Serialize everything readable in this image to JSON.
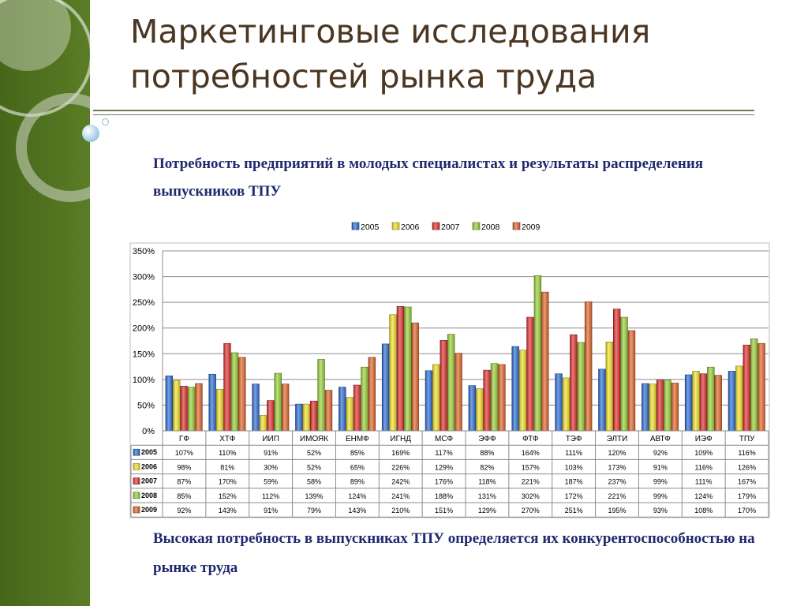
{
  "slide": {
    "title_line1": "Маркетинговые исследования",
    "title_line2": "потребностей рынка труда",
    "subtitle": "Потребность предприятий в молодых специалистах и результаты распределения выпускников ТПУ",
    "footer": "Высокая потребность в выпускниках ТПУ определяется их конкурентоспособностью на рынке труда"
  },
  "colors": {
    "sidebar": "#4e6f1e",
    "title": "#4b3621",
    "text_blue": "#1f2a6e"
  },
  "chart_data": {
    "type": "bar",
    "title": "",
    "xlabel": "",
    "ylabel": "",
    "ylim": [
      0,
      350
    ],
    "y_unit": "%",
    "y_ticks": [
      "0%",
      "50%",
      "100%",
      "150%",
      "200%",
      "250%",
      "300%",
      "350%"
    ],
    "grid": true,
    "legend_position": "top",
    "data_table": true,
    "categories": [
      "ГФ",
      "ХТФ",
      "ИИП",
      "ИМОЯК",
      "ЕНМФ",
      "ИГНД",
      "МСФ",
      "ЭФФ",
      "ФТФ",
      "ТЭФ",
      "ЭЛТИ",
      "АВТФ",
      "ИЭФ",
      "ТПУ"
    ],
    "series": [
      {
        "name": "2005",
        "color": "#2f6fd6",
        "values": [
          107,
          110,
          91,
          52,
          85,
          169,
          117,
          88,
          164,
          111,
          120,
          92,
          109,
          116
        ]
      },
      {
        "name": "2006",
        "color": "#f3e12a",
        "values": [
          98,
          81,
          30,
          52,
          65,
          226,
          129,
          82,
          157,
          103,
          173,
          91,
          116,
          126
        ]
      },
      {
        "name": "2007",
        "color": "#e03232",
        "values": [
          87,
          170,
          59,
          58,
          89,
          242,
          176,
          118,
          221,
          187,
          237,
          99,
          111,
          167
        ]
      },
      {
        "name": "2008",
        "color": "#9ad13a",
        "values": [
          85,
          152,
          112,
          139,
          124,
          241,
          188,
          131,
          302,
          172,
          221,
          99,
          124,
          179
        ]
      },
      {
        "name": "2009",
        "color": "#e0672e",
        "values": [
          92,
          143,
          91,
          79,
          143,
          210,
          151,
          129,
          270,
          251,
          195,
          93,
          108,
          170
        ]
      }
    ]
  }
}
